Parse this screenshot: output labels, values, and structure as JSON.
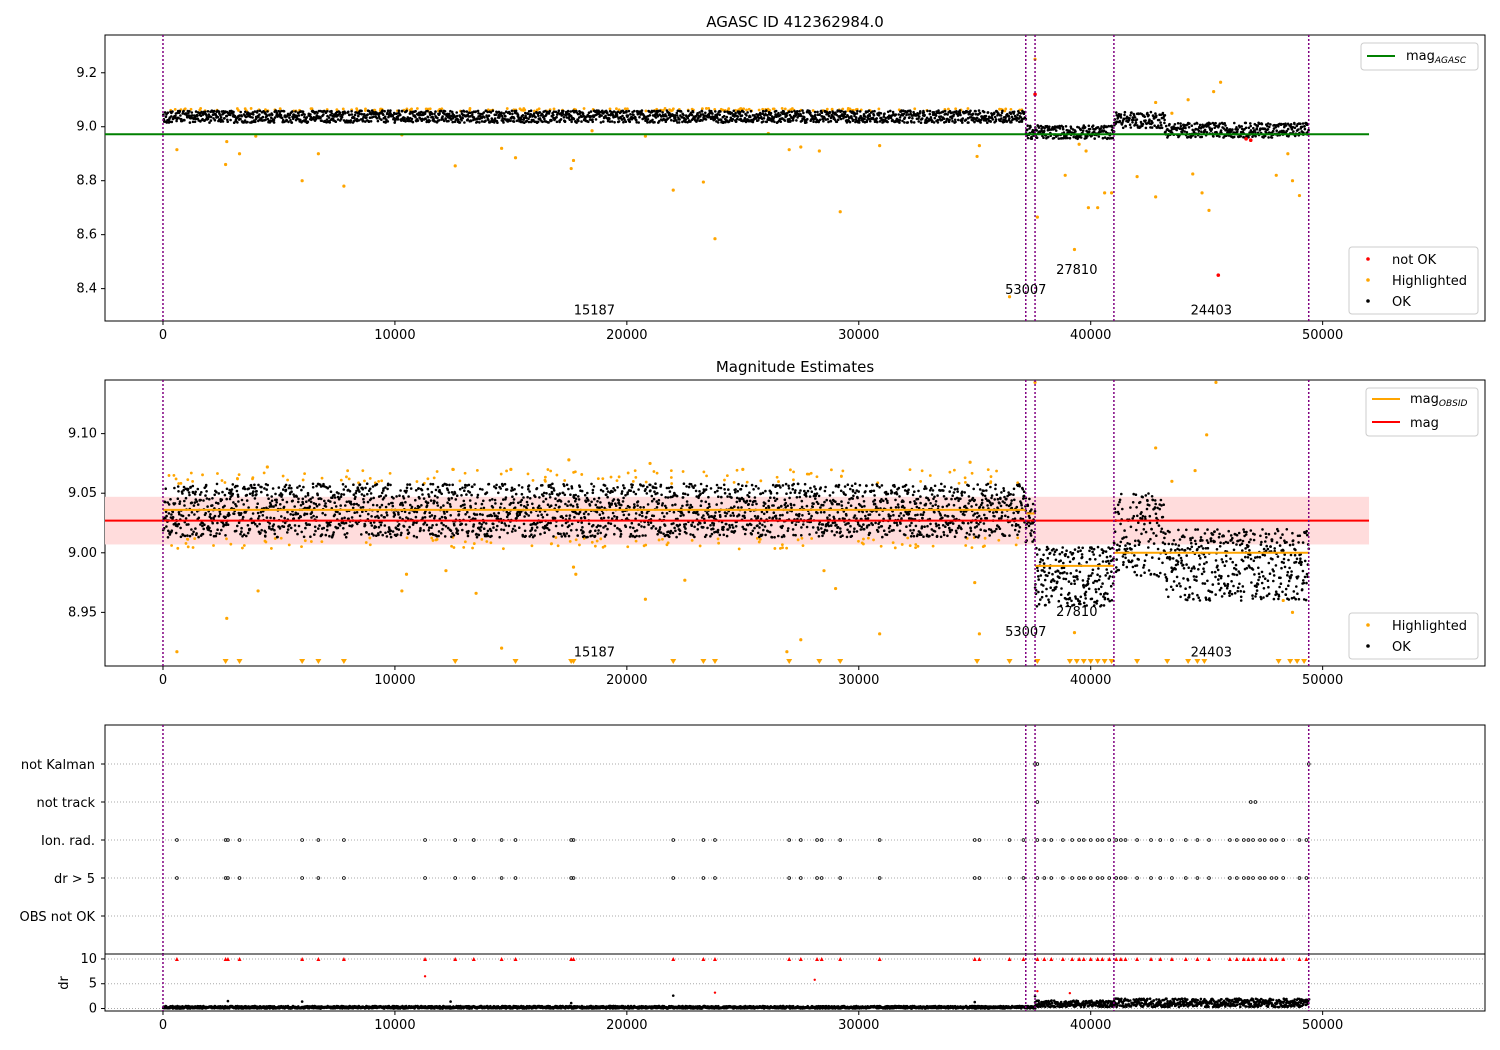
{
  "chart_data": [
    {
      "id": "agasc",
      "type": "scatter",
      "title": "AGASC ID 412362984.0",
      "xlim": [
        -2500,
        57000
      ],
      "ylim": [
        8.28,
        9.34
      ],
      "xticks": [
        0,
        10000,
        20000,
        30000,
        40000,
        50000
      ],
      "yticks": [
        8.4,
        8.6,
        8.8,
        9.0,
        9.2
      ],
      "ytick_labels": [
        "8.4",
        "8.6",
        "8.8",
        "9.0",
        "9.2"
      ],
      "lines": [
        {
          "name": "mag_AGASC",
          "label_main": "mag",
          "label_sub": "AGASC",
          "color": "#008000",
          "y": 8.972,
          "x": [
            -2500,
            52000
          ]
        }
      ],
      "legend_lines": [
        {
          "name": "mag_AGASC",
          "label_main": "mag",
          "label_sub": "AGASC",
          "color": "#008000"
        }
      ],
      "legend_points": [
        {
          "name": "not OK",
          "color": "#ff0000"
        },
        {
          "name": "Highlighted",
          "color": "#ffa500"
        },
        {
          "name": "OK",
          "color": "#000000"
        }
      ],
      "obs_labels": [
        {
          "text": "15187",
          "x": 18600,
          "y": 8.305
        },
        {
          "text": "53007",
          "x": 37200,
          "y": 8.38
        },
        {
          "text": "27810",
          "x": 39400,
          "y": 8.455
        },
        {
          "text": "24403",
          "x": 45200,
          "y": 8.305
        }
      ],
      "dense_segments": [
        {
          "x0": 0,
          "x1": 37200,
          "y_lo": 9.015,
          "y_hi": 9.06
        },
        {
          "x0": 37200,
          "x1": 41000,
          "y_lo": 8.955,
          "y_hi": 9.005
        },
        {
          "x0": 41000,
          "x1": 43200,
          "y_lo": 8.995,
          "y_hi": 9.055
        },
        {
          "x0": 43200,
          "x1": 49400,
          "y_lo": 8.96,
          "y_hi": 9.015
        }
      ],
      "highlighted_points": [
        {
          "x": 600,
          "y": 8.915
        },
        {
          "x": 2700,
          "y": 8.86
        },
        {
          "x": 2750,
          "y": 8.945
        },
        {
          "x": 3300,
          "y": 8.9
        },
        {
          "x": 4000,
          "y": 8.965
        },
        {
          "x": 6000,
          "y": 8.8
        },
        {
          "x": 6700,
          "y": 8.9
        },
        {
          "x": 7800,
          "y": 8.78
        },
        {
          "x": 10300,
          "y": 8.97
        },
        {
          "x": 12600,
          "y": 8.855
        },
        {
          "x": 14600,
          "y": 8.92
        },
        {
          "x": 15200,
          "y": 8.885
        },
        {
          "x": 17600,
          "y": 8.845
        },
        {
          "x": 17700,
          "y": 8.875
        },
        {
          "x": 22000,
          "y": 8.765
        },
        {
          "x": 23300,
          "y": 8.795
        },
        {
          "x": 23800,
          "y": 8.585
        },
        {
          "x": 27000,
          "y": 8.915
        },
        {
          "x": 27500,
          "y": 8.925
        },
        {
          "x": 28300,
          "y": 8.91
        },
        {
          "x": 29200,
          "y": 8.685
        },
        {
          "x": 30900,
          "y": 8.93
        },
        {
          "x": 35200,
          "y": 8.93
        },
        {
          "x": 35100,
          "y": 8.89
        },
        {
          "x": 36500,
          "y": 8.37
        },
        {
          "x": 37700,
          "y": 8.665
        },
        {
          "x": 37600,
          "y": 9.25
        },
        {
          "x": 38900,
          "y": 8.82
        },
        {
          "x": 39300,
          "y": 8.545
        },
        {
          "x": 39500,
          "y": 8.935
        },
        {
          "x": 39800,
          "y": 8.91
        },
        {
          "x": 39900,
          "y": 8.7
        },
        {
          "x": 40300,
          "y": 8.7
        },
        {
          "x": 40600,
          "y": 8.755
        },
        {
          "x": 40900,
          "y": 8.755
        },
        {
          "x": 42000,
          "y": 8.815
        },
        {
          "x": 42800,
          "y": 8.74
        },
        {
          "x": 42800,
          "y": 9.09
        },
        {
          "x": 43500,
          "y": 9.05
        },
        {
          "x": 44200,
          "y": 9.1
        },
        {
          "x": 44400,
          "y": 8.825
        },
        {
          "x": 44800,
          "y": 8.755
        },
        {
          "x": 45100,
          "y": 8.69
        },
        {
          "x": 45300,
          "y": 9.13
        },
        {
          "x": 45600,
          "y": 9.165
        },
        {
          "x": 48000,
          "y": 8.82
        },
        {
          "x": 48500,
          "y": 8.9
        },
        {
          "x": 48700,
          "y": 8.8
        },
        {
          "x": 49000,
          "y": 8.745
        },
        {
          "x": 20800,
          "y": 8.965
        },
        {
          "x": 26100,
          "y": 8.975
        },
        {
          "x": 18500,
          "y": 8.985
        }
      ],
      "notok_points": [
        {
          "x": 37600,
          "y": 9.12
        },
        {
          "x": 45500,
          "y": 8.45
        },
        {
          "x": 46700,
          "y": 8.955
        },
        {
          "x": 46900,
          "y": 8.95
        }
      ],
      "vlines_x": [
        0,
        37200,
        37600,
        41000,
        49400
      ]
    },
    {
      "id": "estimates",
      "type": "scatter",
      "title": "Magnitude Estimates",
      "xlim": [
        -2500,
        57000
      ],
      "ylim": [
        8.905,
        9.145
      ],
      "xticks": [
        0,
        10000,
        20000,
        30000,
        40000,
        50000
      ],
      "yticks": [
        8.95,
        9.0,
        9.05,
        9.1
      ],
      "ytick_labels": [
        "8.95",
        "9.00",
        "9.05",
        "9.10"
      ],
      "lines": [
        {
          "name": "mag",
          "label_main": "mag",
          "label_sub": "",
          "color": "#ff0000",
          "y": 9.027,
          "x": [
            -2500,
            52000
          ]
        }
      ],
      "mag_band": {
        "y_lo": 9.007,
        "y_hi": 9.047,
        "x": [
          -2500,
          52000
        ],
        "color": "#ffdcdc"
      },
      "obsid_lines": [
        {
          "x0": 0,
          "x1": 37200,
          "y": 9.036
        },
        {
          "x0": 37200,
          "x1": 37600,
          "y": 9.033
        },
        {
          "x0": 37600,
          "x1": 41000,
          "y": 8.989
        },
        {
          "x0": 41000,
          "x1": 43200,
          "y": 9.0
        },
        {
          "x0": 43200,
          "x1": 49400,
          "y": 9.0
        }
      ],
      "legend_lines": [
        {
          "name": "mag_OBSID",
          "label_main": "mag",
          "label_sub": "OBSID",
          "color": "#ffa500"
        },
        {
          "name": "mag",
          "label_main": "mag",
          "label_sub": "",
          "color": "#ff0000"
        }
      ],
      "legend_points": [
        {
          "name": "Highlighted",
          "color": "#ffa500"
        },
        {
          "name": "OK",
          "color": "#000000"
        }
      ],
      "obs_labels": [
        {
          "text": "15187",
          "x": 18600,
          "y": 8.913
        },
        {
          "text": "53007",
          "x": 37200,
          "y": 8.93
        },
        {
          "text": "27810",
          "x": 39400,
          "y": 8.947
        },
        {
          "text": "24403",
          "x": 45200,
          "y": 8.913
        }
      ],
      "dense_segments": [
        {
          "x0": 0,
          "x1": 37200,
          "y_lo": 9.013,
          "y_hi": 9.058
        },
        {
          "x0": 37200,
          "x1": 37600,
          "y_lo": 9.005,
          "y_hi": 9.05
        },
        {
          "x0": 37600,
          "x1": 41000,
          "y_lo": 8.955,
          "y_hi": 9.005
        },
        {
          "x0": 41000,
          "x1": 43200,
          "y_lo": 8.98,
          "y_hi": 9.05
        },
        {
          "x0": 43200,
          "x1": 49400,
          "y_lo": 8.96,
          "y_hi": 9.02
        }
      ],
      "highlighted_points": [
        {
          "x": 600,
          "y": 8.917
        },
        {
          "x": 2750,
          "y": 8.945
        },
        {
          "x": 4100,
          "y": 8.968
        },
        {
          "x": 10300,
          "y": 8.968
        },
        {
          "x": 10500,
          "y": 8.982
        },
        {
          "x": 12200,
          "y": 8.985
        },
        {
          "x": 13500,
          "y": 8.966
        },
        {
          "x": 14600,
          "y": 8.92
        },
        {
          "x": 17700,
          "y": 8.988
        },
        {
          "x": 17800,
          "y": 8.982
        },
        {
          "x": 20800,
          "y": 8.961
        },
        {
          "x": 22500,
          "y": 8.977
        },
        {
          "x": 26900,
          "y": 8.917
        },
        {
          "x": 27500,
          "y": 8.927
        },
        {
          "x": 28500,
          "y": 8.985
        },
        {
          "x": 29000,
          "y": 8.97
        },
        {
          "x": 30900,
          "y": 8.932
        },
        {
          "x": 35200,
          "y": 8.932
        },
        {
          "x": 35000,
          "y": 8.975
        },
        {
          "x": 34800,
          "y": 9.076
        },
        {
          "x": 37600,
          "y": 9.143
        },
        {
          "x": 39300,
          "y": 8.933
        },
        {
          "x": 42800,
          "y": 9.088
        },
        {
          "x": 43500,
          "y": 9.06
        },
        {
          "x": 44500,
          "y": 9.069
        },
        {
          "x": 45000,
          "y": 9.099
        },
        {
          "x": 45400,
          "y": 9.143
        },
        {
          "x": 48700,
          "y": 8.95
        },
        {
          "x": 48300,
          "y": 8.96
        },
        {
          "x": 17500,
          "y": 9.078
        },
        {
          "x": 15000,
          "y": 9.07
        },
        {
          "x": 4500,
          "y": 9.072
        },
        {
          "x": 12500,
          "y": 9.07
        },
        {
          "x": 21000,
          "y": 9.075
        },
        {
          "x": 25000,
          "y": 9.07
        }
      ],
      "triangle_x": [
        2700,
        3300,
        6000,
        6700,
        7800,
        12600,
        15200,
        17600,
        17700,
        22000,
        23300,
        23800,
        27000,
        28300,
        29200,
        35100,
        36500,
        37700,
        39100,
        39400,
        39700,
        40000,
        40300,
        40600,
        40900,
        42000,
        43300,
        44200,
        44600,
        44900,
        48100,
        48600,
        48900,
        49200
      ],
      "vlines_x": [
        0,
        37200,
        37600,
        41000,
        49400
      ]
    },
    {
      "id": "flags",
      "type": "scatter",
      "categories": [
        "not Kalman",
        "not track",
        "Ion. rad.",
        "dr > 5",
        "OBS not OK"
      ],
      "xlim": [
        -2500,
        57000
      ],
      "xticks": [
        0,
        10000,
        20000,
        30000,
        40000,
        50000
      ],
      "flag_points": {
        "Ion. rad.": [
          600,
          2700,
          2800,
          3300,
          6000,
          6700,
          7800,
          11300,
          12600,
          13400,
          14600,
          15200,
          17600,
          17700,
          22000,
          23300,
          23800,
          27000,
          27500,
          28200,
          28400,
          29200,
          30900,
          35000,
          35200,
          36500,
          37100,
          37700,
          38000,
          38300,
          38800,
          39200,
          39500,
          39700,
          40000,
          40300,
          40500,
          40800,
          41100,
          41300,
          41500,
          42000,
          42600,
          43000,
          43500,
          44100,
          44600,
          45100,
          46000,
          46300,
          46600,
          46800,
          47000,
          47300,
          47500,
          47800,
          48000,
          48300,
          49000,
          49300
        ],
        "dr > 5": [
          600,
          2700,
          2800,
          3300,
          6000,
          6700,
          7800,
          11300,
          12600,
          13400,
          14600,
          15200,
          17600,
          17700,
          22000,
          23300,
          23800,
          27000,
          27500,
          28200,
          28400,
          29200,
          30900,
          35000,
          35200,
          36500,
          37100,
          37700,
          38000,
          38300,
          38800,
          39200,
          39500,
          39700,
          40000,
          40300,
          40500,
          40800,
          41100,
          41300,
          41500,
          42000,
          42600,
          43000,
          43500,
          44100,
          44600,
          45100,
          46000,
          46300,
          46600,
          46800,
          47000,
          47300,
          47500,
          47800,
          48000,
          48300,
          49000,
          49300
        ],
        "not track": [
          37700,
          46900,
          47100
        ],
        "not Kalman": [
          37600,
          37700,
          49400
        ]
      },
      "vlines_x": [
        0,
        37200,
        37600,
        41000,
        49400
      ]
    },
    {
      "id": "dr",
      "type": "scatter",
      "ylabel": "dr",
      "xlim": [
        -2500,
        57000
      ],
      "ylim": [
        -0.5,
        11
      ],
      "xticks": [
        0,
        10000,
        20000,
        30000,
        40000,
        50000
      ],
      "xtick_labels": [
        "0",
        "10000",
        "20000",
        "30000",
        "40000",
        "50000"
      ],
      "yticks": [
        0,
        5,
        10
      ],
      "ytick_labels": [
        "0",
        "5",
        "10"
      ],
      "dense_segments": [
        {
          "x0": 0,
          "x1": 37600,
          "y_lo": 0.0,
          "y_hi": 0.5
        },
        {
          "x0": 37600,
          "x1": 41000,
          "y_lo": 0.3,
          "y_hi": 1.6
        },
        {
          "x0": 41000,
          "x1": 49400,
          "y_lo": 0.3,
          "y_hi": 2.0
        }
      ],
      "red_points_at_10": [
        600,
        2700,
        2800,
        3300,
        6000,
        6700,
        7800,
        11300,
        12600,
        13400,
        14600,
        15200,
        17600,
        17700,
        22000,
        23300,
        23800,
        27000,
        27500,
        28200,
        28400,
        29200,
        30900,
        35000,
        35200,
        36500,
        37100,
        37700,
        38000,
        38300,
        38800,
        39200,
        39500,
        39700,
        40000,
        40300,
        40500,
        40800,
        41100,
        41300,
        41500,
        42000,
        42600,
        43000,
        43500,
        44100,
        44600,
        45100,
        46000,
        46300,
        46600,
        46800,
        47000,
        47300,
        47500,
        47800,
        48000,
        48300,
        49000,
        49300
      ],
      "red_points": [
        {
          "x": 11300,
          "y": 6.5
        },
        {
          "x": 28100,
          "y": 5.8
        },
        {
          "x": 23800,
          "y": 3.2
        },
        {
          "x": 37700,
          "y": 3.5
        },
        {
          "x": 39100,
          "y": 3.1
        }
      ],
      "black_points": [
        {
          "x": 2800,
          "y": 1.5
        },
        {
          "x": 6000,
          "y": 1.4
        },
        {
          "x": 12400,
          "y": 1.4
        },
        {
          "x": 17600,
          "y": 1.1
        },
        {
          "x": 22000,
          "y": 2.6
        },
        {
          "x": 35000,
          "y": 1.3
        },
        {
          "x": 37600,
          "y": 2.5
        }
      ],
      "vlines_x": [
        0,
        37200,
        37600,
        41000,
        49400
      ]
    }
  ]
}
